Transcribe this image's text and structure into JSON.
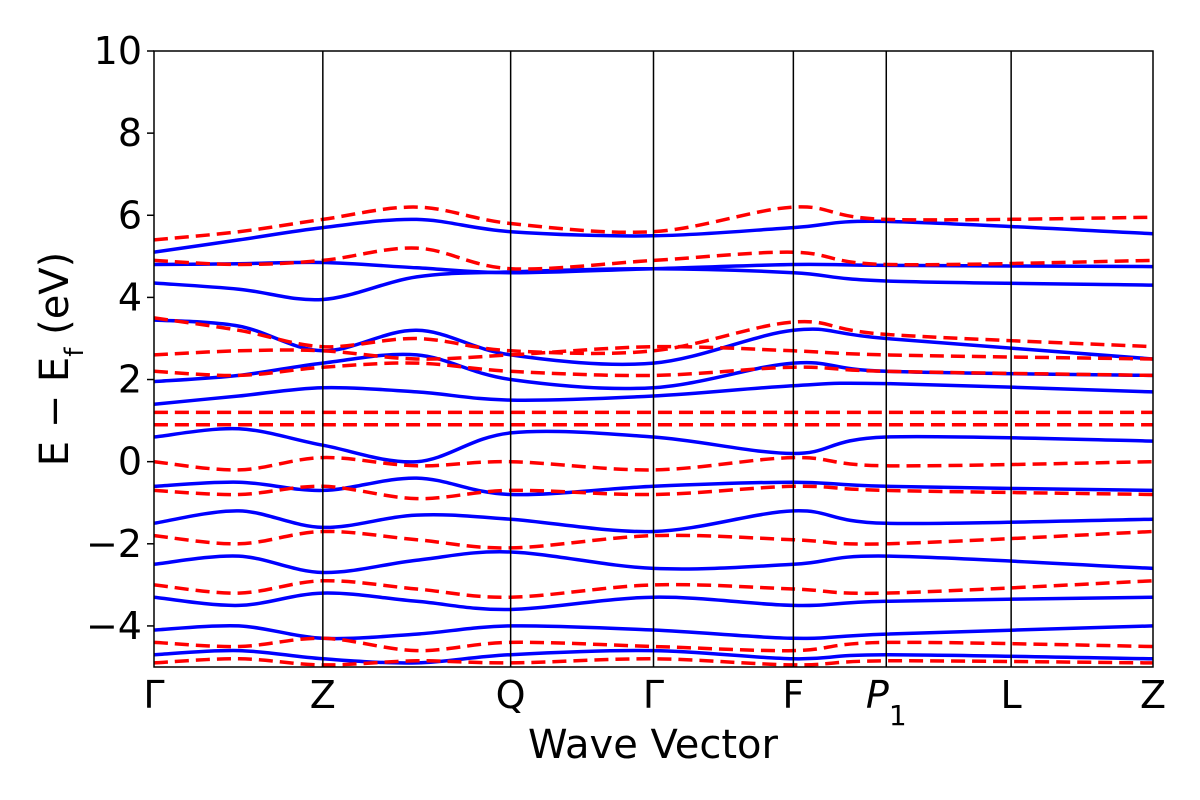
{
  "chart_data": {
    "type": "line",
    "title": "",
    "xlabel": "Wave Vector",
    "ylabel": "E − E_f (eV)",
    "ylabel_parts": {
      "main": "E − E",
      "sub": "f",
      "unit": " (eV)"
    },
    "ylim": [
      -5,
      10
    ],
    "yticks": [
      -4,
      -2,
      0,
      2,
      4,
      6,
      8,
      10
    ],
    "ytick_labels": [
      "−4",
      "−2",
      "0",
      "2",
      "4",
      "6",
      "8",
      "10"
    ],
    "xlim": [
      0,
      1
    ],
    "high_symmetry_points": [
      {
        "label": "Γ",
        "x": 0.0
      },
      {
        "label": "Z",
        "x": 0.169
      },
      {
        "label": "Q",
        "x": 0.357
      },
      {
        "label": "Γ",
        "x": 0.5
      },
      {
        "label": "F",
        "x": 0.64
      },
      {
        "label": "P",
        "sub": "1",
        "x": 0.733
      },
      {
        "label": "L",
        "x": 0.858
      },
      {
        "label": "Z",
        "x": 1.0
      }
    ],
    "grid": false,
    "legend": "none",
    "series": [
      {
        "style": "solid",
        "color": "#0000ff",
        "bands": [
          [
            4.8,
            4.82,
            4.85,
            4.72,
            4.6,
            4.7,
            4.8,
            4.78,
            4.75
          ],
          [
            4.35,
            4.2,
            3.95,
            4.5,
            4.62,
            4.7,
            4.6,
            4.4,
            4.3
          ],
          [
            5.1,
            5.4,
            5.7,
            5.9,
            5.6,
            5.5,
            5.7,
            5.85,
            5.55
          ],
          [
            3.45,
            3.3,
            2.7,
            3.2,
            2.6,
            2.4,
            3.2,
            3.0,
            2.5
          ],
          [
            1.95,
            2.1,
            2.4,
            2.6,
            2.0,
            1.8,
            2.4,
            2.2,
            2.1
          ],
          [
            1.4,
            1.6,
            1.8,
            1.7,
            1.5,
            1.6,
            1.85,
            1.9,
            1.7
          ],
          [
            0.6,
            0.8,
            0.4,
            0.0,
            0.7,
            0.6,
            0.2,
            0.6,
            0.5
          ],
          [
            -0.6,
            -0.5,
            -0.7,
            -0.4,
            -0.8,
            -0.6,
            -0.5,
            -0.6,
            -0.7
          ],
          [
            -1.5,
            -1.2,
            -1.6,
            -1.3,
            -1.4,
            -1.7,
            -1.2,
            -1.5,
            -1.4
          ],
          [
            -2.5,
            -2.3,
            -2.7,
            -2.4,
            -2.2,
            -2.6,
            -2.5,
            -2.3,
            -2.6
          ],
          [
            -3.3,
            -3.5,
            -3.2,
            -3.4,
            -3.6,
            -3.3,
            -3.5,
            -3.4,
            -3.3
          ],
          [
            -4.1,
            -4.0,
            -4.3,
            -4.2,
            -4.0,
            -4.1,
            -4.3,
            -4.2,
            -4.0
          ],
          [
            -4.7,
            -4.6,
            -4.8,
            -4.9,
            -4.7,
            -4.6,
            -4.8,
            -4.7,
            -4.8
          ]
        ]
      },
      {
        "style": "dashed",
        "color": "#ff0000",
        "bands": [
          [
            5.4,
            5.6,
            5.9,
            6.2,
            5.8,
            5.6,
            6.2,
            5.9,
            5.95
          ],
          [
            4.9,
            4.8,
            4.9,
            5.2,
            4.7,
            4.9,
            5.1,
            4.8,
            4.9
          ],
          [
            3.5,
            3.2,
            2.8,
            3.0,
            2.7,
            2.7,
            3.4,
            3.1,
            2.8
          ],
          [
            2.6,
            2.7,
            2.7,
            2.5,
            2.6,
            2.8,
            2.7,
            2.6,
            2.5
          ],
          [
            2.2,
            2.1,
            2.3,
            2.4,
            2.2,
            2.1,
            2.3,
            2.2,
            2.1
          ],
          [
            1.2,
            1.2,
            1.2,
            1.2,
            1.2,
            1.2,
            1.2,
            1.2,
            1.2
          ],
          [
            0.9,
            0.9,
            0.9,
            0.9,
            0.9,
            0.9,
            0.9,
            0.9,
            0.9
          ],
          [
            0.0,
            -0.2,
            0.1,
            -0.1,
            0.0,
            -0.2,
            0.1,
            -0.1,
            0.0
          ],
          [
            -0.7,
            -0.8,
            -0.6,
            -0.9,
            -0.7,
            -0.8,
            -0.6,
            -0.7,
            -0.8
          ],
          [
            -1.8,
            -2.0,
            -1.7,
            -1.9,
            -2.1,
            -1.8,
            -1.9,
            -2.0,
            -1.7
          ],
          [
            -3.0,
            -3.2,
            -2.9,
            -3.1,
            -3.3,
            -3.0,
            -3.1,
            -3.2,
            -2.9
          ],
          [
            -4.4,
            -4.5,
            -4.3,
            -4.6,
            -4.4,
            -4.5,
            -4.6,
            -4.4,
            -4.5
          ],
          [
            -4.9,
            -4.8,
            -4.95,
            -4.85,
            -4.9,
            -4.8,
            -4.95,
            -4.85,
            -4.9
          ]
        ]
      }
    ],
    "sample_x": [
      0.0,
      0.085,
      0.169,
      0.263,
      0.357,
      0.5,
      0.64,
      0.733,
      1.0
    ]
  }
}
